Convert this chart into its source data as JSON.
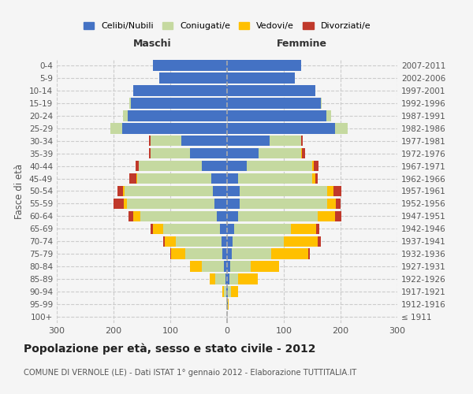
{
  "age_groups": [
    "100+",
    "95-99",
    "90-94",
    "85-89",
    "80-84",
    "75-79",
    "70-74",
    "65-69",
    "60-64",
    "55-59",
    "50-54",
    "45-49",
    "40-44",
    "35-39",
    "30-34",
    "25-29",
    "20-24",
    "15-19",
    "10-14",
    "5-9",
    "0-4"
  ],
  "birth_years": [
    "≤ 1911",
    "1912-1916",
    "1917-1921",
    "1922-1926",
    "1927-1931",
    "1932-1936",
    "1937-1941",
    "1942-1946",
    "1947-1951",
    "1952-1956",
    "1957-1961",
    "1962-1966",
    "1967-1971",
    "1972-1976",
    "1977-1981",
    "1982-1986",
    "1987-1991",
    "1992-1996",
    "1997-2001",
    "2002-2006",
    "2007-2011"
  ],
  "males": {
    "celibe": [
      0,
      0,
      1,
      3,
      5,
      8,
      10,
      12,
      18,
      22,
      25,
      28,
      45,
      65,
      80,
      185,
      175,
      170,
      165,
      120,
      130
    ],
    "coniugato": [
      0,
      1,
      5,
      18,
      40,
      65,
      80,
      100,
      135,
      155,
      155,
      130,
      110,
      70,
      55,
      20,
      8,
      2,
      0,
      0,
      0
    ],
    "vedovo": [
      0,
      0,
      2,
      10,
      20,
      25,
      20,
      18,
      12,
      5,
      3,
      2,
      1,
      0,
      0,
      0,
      0,
      0,
      0,
      0,
      0
    ],
    "divorziato": [
      0,
      0,
      0,
      0,
      0,
      2,
      3,
      5,
      8,
      18,
      10,
      12,
      5,
      3,
      2,
      0,
      0,
      0,
      0,
      0,
      0
    ]
  },
  "females": {
    "nubile": [
      0,
      1,
      2,
      4,
      6,
      8,
      10,
      12,
      20,
      22,
      22,
      20,
      35,
      55,
      75,
      190,
      175,
      165,
      155,
      120,
      130
    ],
    "coniugata": [
      0,
      0,
      5,
      15,
      35,
      70,
      90,
      100,
      140,
      155,
      155,
      130,
      115,
      75,
      55,
      22,
      8,
      2,
      0,
      0,
      0
    ],
    "vedova": [
      0,
      2,
      12,
      35,
      50,
      65,
      60,
      45,
      30,
      15,
      10,
      5,
      3,
      2,
      1,
      0,
      0,
      0,
      0,
      0,
      0
    ],
    "divorziata": [
      0,
      0,
      0,
      0,
      0,
      3,
      5,
      5,
      12,
      8,
      15,
      5,
      8,
      5,
      2,
      0,
      0,
      0,
      0,
      0,
      0
    ]
  },
  "colors": {
    "celibe": "#4472c4",
    "coniugato": "#c5d9a0",
    "vedovo": "#ffc000",
    "divorziato": "#c0392b"
  },
  "title": "Popolazione per età, sesso e stato civile - 2012",
  "subtitle": "COMUNE DI VERNOLE (LE) - Dati ISTAT 1° gennaio 2012 - Elaborazione TUTTITALIA.IT",
  "xlabel_left": "Maschi",
  "xlabel_right": "Femmine",
  "ylabel": "Fasce di età",
  "xlim": 300,
  "background_color": "#f5f5f5",
  "legend_labels": [
    "Celibi/Nubili",
    "Coniugati/e",
    "Vedovi/e",
    "Divorziati/e"
  ]
}
